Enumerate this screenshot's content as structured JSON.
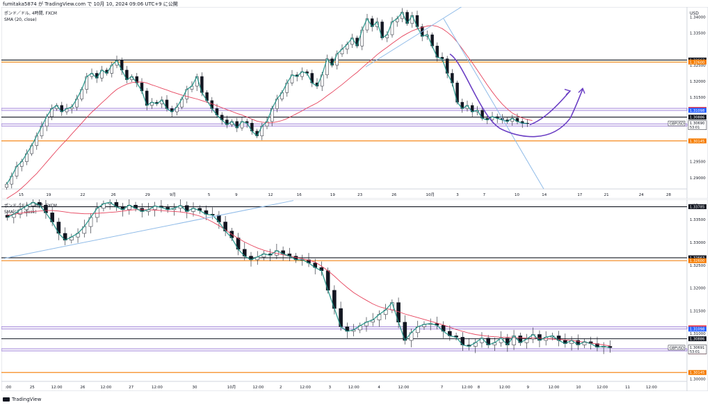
{
  "header": {
    "author_line": "fumitaka5874 が TradingView.com で 10月 10, 2024 09:06 UTC+9 に公開"
  },
  "footer": {
    "logo_text": "TradingView"
  },
  "colors": {
    "price_line": "#e8eaef",
    "sma": "#e6435c",
    "wave": "#1b8f84",
    "trend": "#8fbbe8",
    "purple": "#6b3fc4",
    "black_level": "#131722",
    "orange_level": "#f57c00",
    "red_level": "#f23645",
    "blue_level": "#2962ff"
  },
  "chart_data": [
    {
      "type": "candlestick",
      "name": "top",
      "title": "ポンド／ドル, 4時間, FXCM",
      "indicator": "SMA (20, close)",
      "currency": "USD",
      "ylim": [
        1.2865,
        1.3425
      ],
      "ticks": [
        "1.34000",
        "1.33500",
        "1.32500",
        "1.32000",
        "1.31500",
        "1.29500",
        "1.29000"
      ],
      "tick_values": [
        1.34,
        1.335,
        1.325,
        1.32,
        1.315,
        1.295,
        1.29
      ],
      "xlabels": [
        "15",
        "19",
        "22",
        "26",
        "29",
        "9月",
        "5",
        "9",
        "12",
        "16",
        "19",
        "23",
        "26",
        "10月",
        "3",
        "7",
        "10",
        "14",
        "17",
        "21",
        "24",
        "28"
      ],
      "xlabel_pos": [
        0.025,
        0.065,
        0.115,
        0.16,
        0.21,
        0.247,
        0.3,
        0.34,
        0.39,
        0.432,
        0.481,
        0.521,
        0.571,
        0.624,
        0.664,
        0.703,
        0.751,
        0.791,
        0.843,
        0.882,
        0.933,
        0.973
      ],
      "close": [
        1.288,
        1.2905,
        1.2935,
        1.295,
        1.2975,
        1.3,
        1.303,
        1.306,
        1.309,
        1.3115,
        1.3125,
        1.3105,
        1.3115,
        1.312,
        1.3145,
        1.3175,
        1.3215,
        1.3225,
        1.321,
        1.3235,
        1.3225,
        1.325,
        1.3265,
        1.3235,
        1.3205,
        1.3215,
        1.3195,
        1.317,
        1.3125,
        1.3135,
        1.313,
        1.3142,
        1.3115,
        1.3105,
        1.312,
        1.3145,
        1.3175,
        1.3185,
        1.3215,
        1.3165,
        1.314,
        1.3115,
        1.3095,
        1.308,
        1.3065,
        1.3075,
        1.3055,
        1.3075,
        1.307,
        1.3045,
        1.303,
        1.306,
        1.3075,
        1.3115,
        1.3145,
        1.3165,
        1.3195,
        1.322,
        1.3215,
        1.323,
        1.3225,
        1.3195,
        1.3185,
        1.322,
        1.327,
        1.325,
        1.3285,
        1.33,
        1.3315,
        1.3335,
        1.331,
        1.336,
        1.3395,
        1.337,
        1.3385,
        1.3335,
        1.3345,
        1.3385,
        1.3395,
        1.3415,
        1.338,
        1.3405,
        1.337,
        1.334,
        1.3345,
        1.331,
        1.3275,
        1.327,
        1.3225,
        1.3195,
        1.3135,
        1.3115,
        1.3125,
        1.3105,
        1.311,
        1.3085,
        1.308,
        1.309,
        1.3085,
        1.308,
        1.3075,
        1.3085,
        1.3075,
        1.307,
        1.3069
      ],
      "sma": [
        1.2835,
        1.2845,
        1.2855,
        1.2868,
        1.2882,
        1.2898,
        1.2913,
        1.2931,
        1.2949,
        1.2967,
        1.2985,
        1.3002,
        1.3018,
        1.3036,
        1.3053,
        1.307,
        1.3088,
        1.3104,
        1.3118,
        1.3133,
        1.3147,
        1.3162,
        1.3175,
        1.3184,
        1.3191,
        1.3196,
        1.3198,
        1.3198,
        1.3195,
        1.3189,
        1.3184,
        1.3178,
        1.3173,
        1.3167,
        1.3162,
        1.3157,
        1.3153,
        1.3149,
        1.3145,
        1.314,
        1.3135,
        1.313,
        1.3124,
        1.3118,
        1.3112,
        1.3106,
        1.31,
        1.3095,
        1.3089,
        1.3082,
        1.3076,
        1.3073,
        1.3071,
        1.3071,
        1.3074,
        1.3078,
        1.3084,
        1.3092,
        1.31,
        1.3108,
        1.3117,
        1.3125,
        1.3133,
        1.3143,
        1.3155,
        1.3166,
        1.3178,
        1.319,
        1.3203,
        1.3216,
        1.3228,
        1.3242,
        1.3256,
        1.3269,
        1.3283,
        1.3295,
        1.3306,
        1.3318,
        1.3329,
        1.334,
        1.3349,
        1.3357,
        1.3363,
        1.3368,
        1.3372,
        1.3374,
        1.3371,
        1.3364,
        1.3353,
        1.334,
        1.3322,
        1.3301,
        1.3279,
        1.3258,
        1.3235,
        1.3212,
        1.3189,
        1.3167,
        1.3147,
        1.3129,
        1.3114,
        1.3101,
        1.3093,
        1.3086,
        1.3081,
        1.3078
      ],
      "last_price": "1.30690",
      "last_sub": "53:01",
      "symbol": "GBPUSD",
      "levels": [
        {
          "value": 1.32663,
          "label": "1.32663",
          "color": "#131722",
          "style": "solid"
        },
        {
          "value": 1.326,
          "label": "1.32600",
          "color": "#f57c00",
          "style": "solid"
        },
        {
          "value": 1.31126,
          "label": "1.31126",
          "color": "#f23645",
          "style": "purple"
        },
        {
          "value": 1.31098,
          "label": "1.31098",
          "color": "#2962ff",
          "style": "none"
        },
        {
          "value": 1.30886,
          "label": "1.30886",
          "color": "#131722",
          "style": "solid"
        },
        {
          "value": 1.30643,
          "label": "1.30643",
          "color": "#2962ff",
          "style": "purple"
        },
        {
          "value": 1.30603,
          "label": "1.30603",
          "color": "#f23645",
          "style": "none"
        },
        {
          "value": 1.30145,
          "label": "1.30145",
          "color": "#f57c00",
          "style": "solid"
        }
      ]
    },
    {
      "type": "candlestick",
      "name": "bottom",
      "title": "ポンド／ドル, 4時間, FXCM",
      "indicator": "SMA (20, close)",
      "currency": "USD",
      "ylim": [
        1.2995,
        1.339
      ],
      "ticks": [
        "1.33500",
        "1.33000",
        "1.32500",
        "1.32000",
        "1.31500",
        "1.31000",
        "1.30000"
      ],
      "tick_values": [
        1.335,
        1.33,
        1.325,
        1.32,
        1.315,
        1.31,
        1.3
      ],
      "xlabels": [
        ":00",
        "25",
        "12:00",
        "26",
        "12:00",
        "27",
        "12:00",
        "30",
        "10月",
        "12:00",
        "2",
        "12:00",
        "3",
        "12:00",
        "4",
        "12:00",
        "7",
        "12:00",
        "8",
        "12:00",
        "9",
        "12:00",
        "10",
        "12:00",
        "11",
        "12:00"
      ],
      "xlabel_pos": [
        0.006,
        0.041,
        0.077,
        0.115,
        0.149,
        0.186,
        0.224,
        0.279,
        0.333,
        0.372,
        0.405,
        0.441,
        0.477,
        0.512,
        0.549,
        0.585,
        0.641,
        0.678,
        0.695,
        0.733,
        0.767,
        0.805,
        0.841,
        0.876,
        0.913,
        0.948
      ],
      "close": [
        1.3355,
        1.3362,
        1.3372,
        1.338,
        1.3388,
        1.3382,
        1.3365,
        1.3345,
        1.332,
        1.3305,
        1.3312,
        1.332,
        1.3335,
        1.3355,
        1.3375,
        1.3385,
        1.3388,
        1.3378,
        1.3372,
        1.3382,
        1.3375,
        1.3368,
        1.3372,
        1.338,
        1.3377,
        1.3372,
        1.3375,
        1.3381,
        1.3368,
        1.3375,
        1.337,
        1.3362,
        1.336,
        1.3345,
        1.3325,
        1.331,
        1.3285,
        1.327,
        1.3262,
        1.3268,
        1.3275,
        1.3272,
        1.3282,
        1.3275,
        1.327,
        1.3262,
        1.3262,
        1.3255,
        1.3245,
        1.3238,
        1.3195,
        1.3155,
        1.3115,
        1.3105,
        1.3108,
        1.3117,
        1.3125,
        1.313,
        1.3142,
        1.3152,
        1.3168,
        1.3125,
        1.3085,
        1.3102,
        1.3115,
        1.312,
        1.3122,
        1.3118,
        1.3105,
        1.3095,
        1.3092,
        1.3075,
        1.3072,
        1.308,
        1.309,
        1.3075,
        1.308,
        1.309,
        1.3075,
        1.3095,
        1.308,
        1.3088,
        1.3098,
        1.3085,
        1.3092,
        1.3095,
        1.3085,
        1.3078,
        1.3085,
        1.3075,
        1.3082,
        1.3078,
        1.307,
        1.3072,
        1.3069
      ],
      "sma": [
        1.336,
        1.3362,
        1.3364,
        1.3366,
        1.3368,
        1.3369,
        1.337,
        1.337,
        1.3369,
        1.3367,
        1.3365,
        1.3364,
        1.3363,
        1.3363,
        1.3364,
        1.3365,
        1.3366,
        1.3367,
        1.3369,
        1.3371,
        1.3372,
        1.3372,
        1.3372,
        1.3371,
        1.337,
        1.3369,
        1.3368,
        1.3367,
        1.3365,
        1.3362,
        1.3358,
        1.3352,
        1.3345,
        1.3337,
        1.3328,
        1.3318,
        1.3309,
        1.3301,
        1.3294,
        1.3288,
        1.3283,
        1.3279,
        1.3276,
        1.3273,
        1.327,
        1.3267,
        1.3264,
        1.3261,
        1.3257,
        1.3248,
        1.3238,
        1.3226,
        1.3213,
        1.3201,
        1.319,
        1.3181,
        1.3173,
        1.3165,
        1.3159,
        1.3155,
        1.3152,
        1.3148,
        1.3143,
        1.3139,
        1.3135,
        1.3131,
        1.3127,
        1.3123,
        1.3119,
        1.3114,
        1.3109,
        1.3105,
        1.3101,
        1.3098,
        1.3096,
        1.3094,
        1.3093,
        1.3092,
        1.3092,
        1.3091,
        1.3091,
        1.309,
        1.309,
        1.309,
        1.3089,
        1.3088,
        1.3087,
        1.3086,
        1.3085,
        1.3083,
        1.3081,
        1.3079,
        1.3077,
        1.3075,
        1.3073
      ],
      "last_price": "1.30691",
      "last_sub": "53:01",
      "symbol": "GBPUSD",
      "levels": [
        {
          "value": 1.33785,
          "label": "1.33785",
          "color": "#131722",
          "style": "solid"
        },
        {
          "value": 1.32663,
          "label": "1.32663",
          "color": "#131722",
          "style": "solid"
        },
        {
          "value": 1.326,
          "label": "1.32600",
          "color": "#f57c00",
          "style": "solid"
        },
        {
          "value": 1.31126,
          "label": "1.31126",
          "color": "#f23645",
          "style": "purple"
        },
        {
          "value": 1.31098,
          "label": "1.31098",
          "color": "#2962ff",
          "style": "none"
        },
        {
          "value": 1.30886,
          "label": "1.30886",
          "color": "#131722",
          "style": "solid"
        },
        {
          "value": 1.30643,
          "label": "1.30643",
          "color": "#2962ff",
          "style": "purple"
        },
        {
          "value": 1.30603,
          "label": "1.30603",
          "color": "#f23645",
          "style": "none"
        },
        {
          "value": 1.30145,
          "label": "1.30145",
          "color": "#f57c00",
          "style": "solid"
        }
      ]
    }
  ]
}
